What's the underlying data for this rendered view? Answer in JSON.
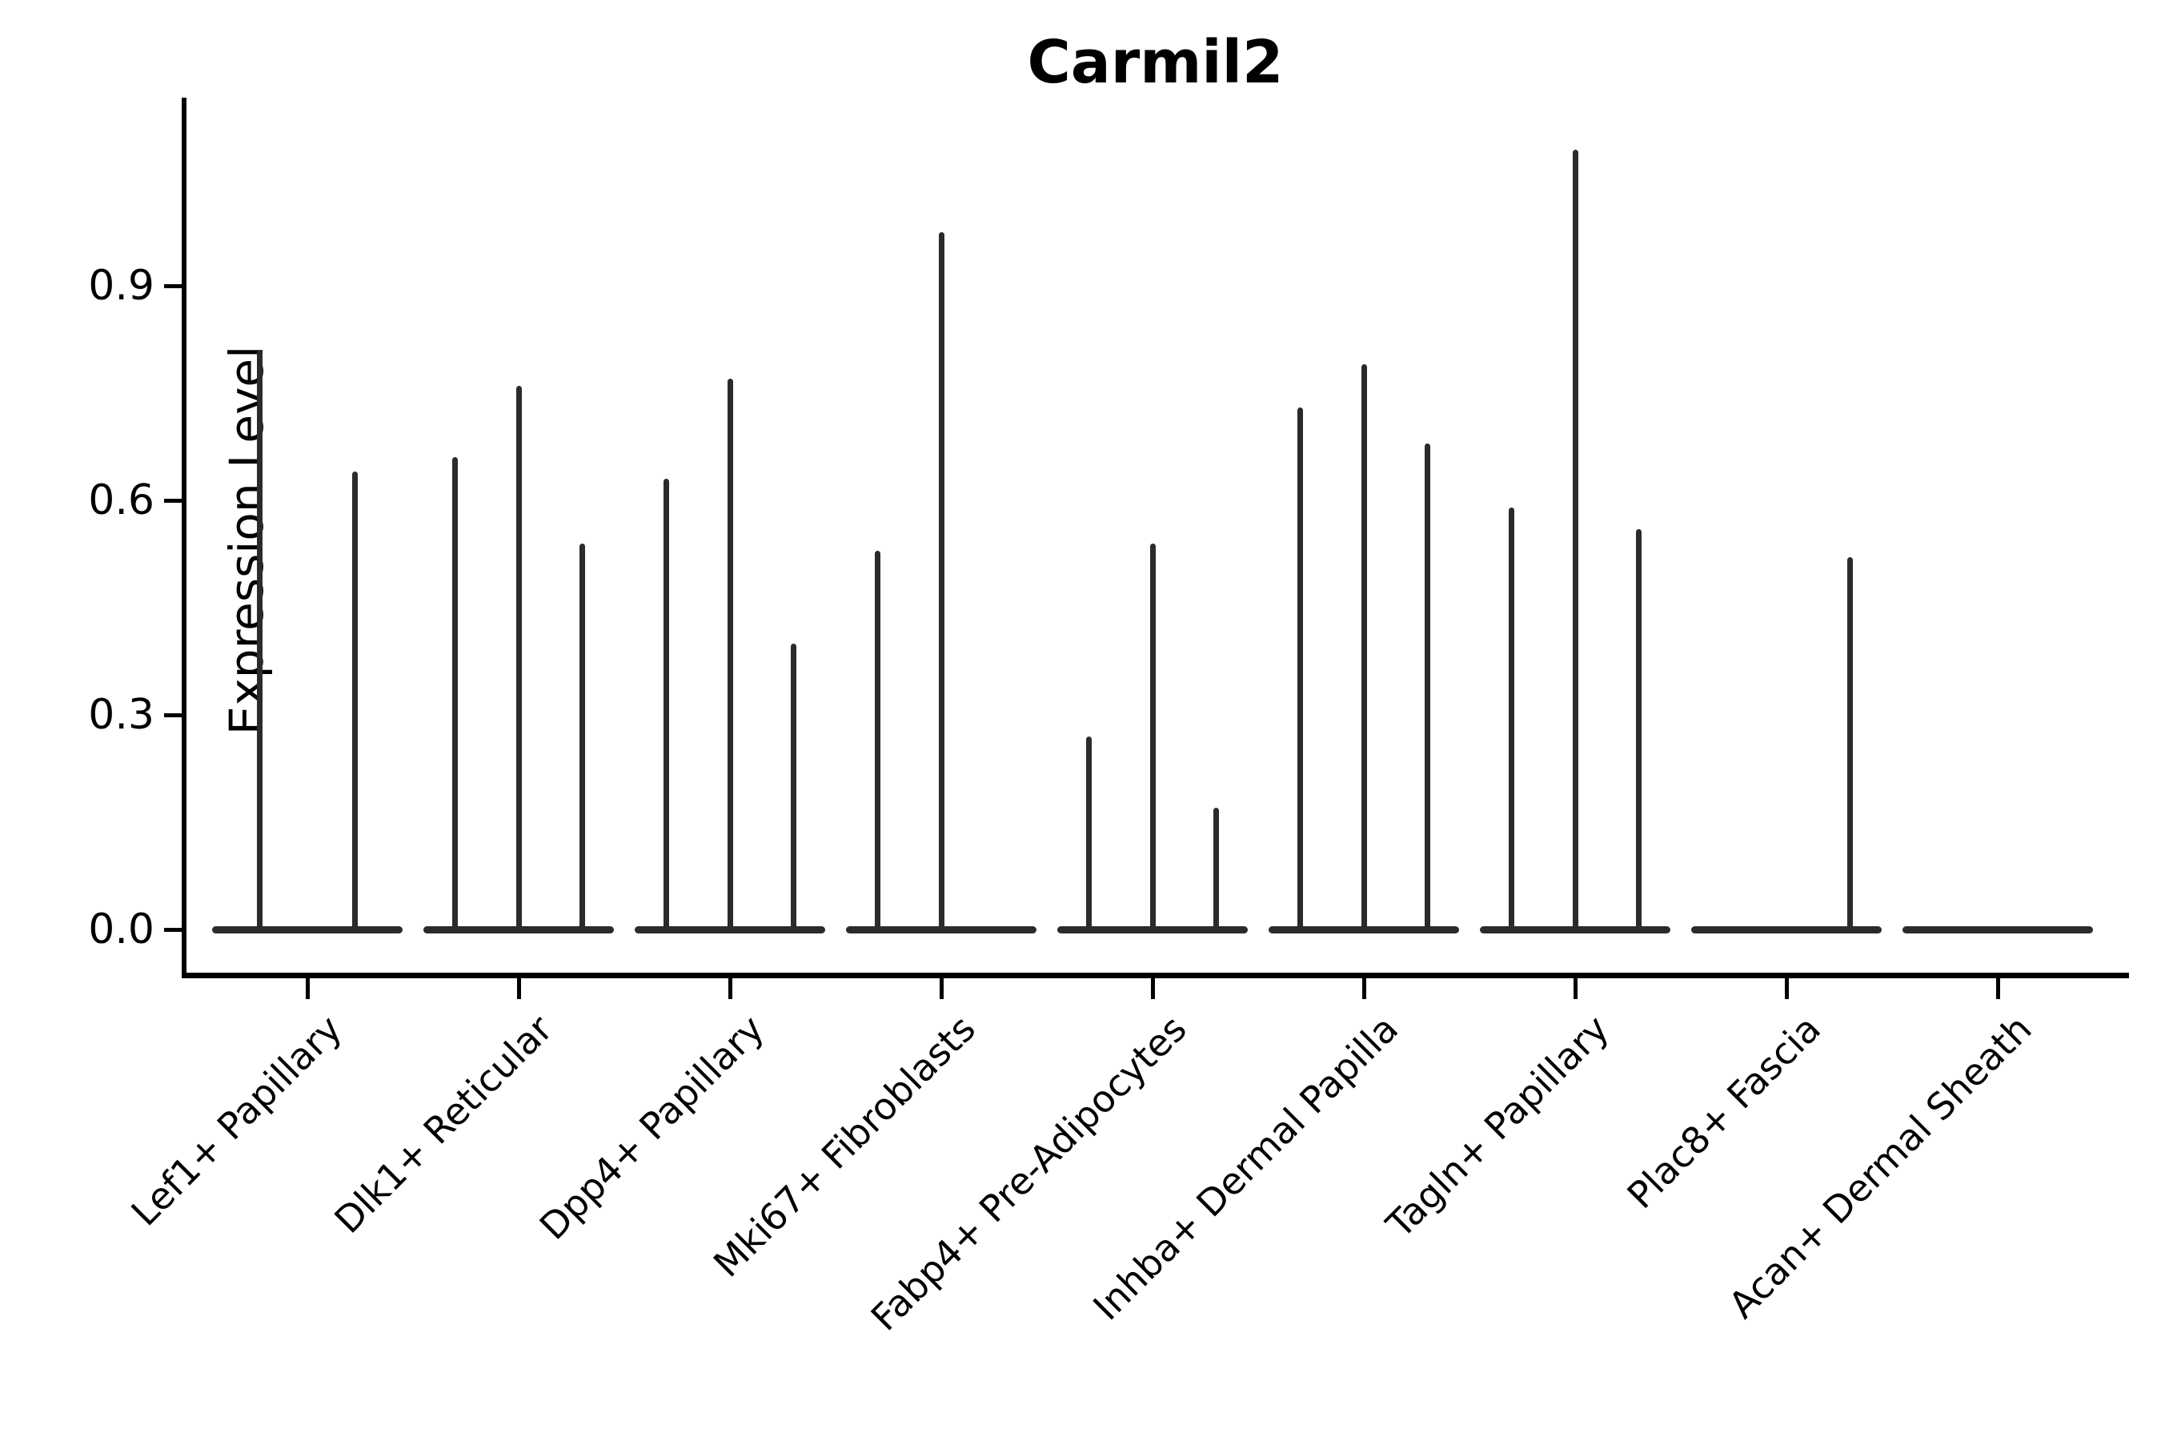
{
  "chart_data": {
    "type": "violin",
    "title": "Carmil2",
    "ylabel": "Expression Level",
    "xlabel": "",
    "grid": false,
    "legend": null,
    "line_color": "#2b2b2b",
    "axis_color": "#000000",
    "ylim": [
      -0.06,
      1.16
    ],
    "ytick_labels": [
      "0.0",
      "0.3",
      "0.6",
      "0.9"
    ],
    "ytick_values": [
      0.0,
      0.3,
      0.6,
      0.9
    ],
    "categories": [
      "Lef1+ Papillary",
      "Dlk1+ Reticular",
      "Dpp4+ Papillary",
      "Mki67+ Fibroblasts",
      "Fabp4+ Pre-Adipocytes",
      "Inhba+ Dermal Papilla",
      "Tagln+ Papillary",
      "Plac8+ Fascia",
      "Acan+ Dermal Sheath"
    ],
    "groups": [
      {
        "category": "Lef1+ Papillary",
        "slots": 2,
        "violins": [
          {
            "slot": 0,
            "max": 0.81
          },
          {
            "slot": 1,
            "max": 0.64
          }
        ]
      },
      {
        "category": "Dlk1+ Reticular",
        "slots": 3,
        "violins": [
          {
            "slot": 0,
            "max": 0.66
          },
          {
            "slot": 1,
            "max": 0.76
          },
          {
            "slot": 2,
            "max": 0.54
          }
        ]
      },
      {
        "category": "Dpp4+ Papillary",
        "slots": 3,
        "violins": [
          {
            "slot": 0,
            "max": 0.63
          },
          {
            "slot": 1,
            "max": 0.77
          },
          {
            "slot": 2,
            "max": 0.4
          }
        ]
      },
      {
        "category": "Mki67+ Fibroblasts",
        "slots": 3,
        "violins": [
          {
            "slot": 0,
            "max": 0.53
          },
          {
            "slot": 1,
            "max": 0.975
          }
        ]
      },
      {
        "category": "Fabp4+ Pre-Adipocytes",
        "slots": 3,
        "violins": [
          {
            "slot": 0,
            "max": 0.27
          },
          {
            "slot": 1,
            "max": 0.54
          },
          {
            "slot": 2,
            "max": 0.17
          }
        ]
      },
      {
        "category": "Inhba+ Dermal Papilla",
        "slots": 3,
        "violins": [
          {
            "slot": 0,
            "max": 0.73
          },
          {
            "slot": 1,
            "max": 0.79
          },
          {
            "slot": 2,
            "max": 0.68
          }
        ]
      },
      {
        "category": "Tagln+ Papillary",
        "slots": 3,
        "violins": [
          {
            "slot": 0,
            "max": 0.59
          },
          {
            "slot": 1,
            "max": 1.09
          },
          {
            "slot": 2,
            "max": 0.56
          }
        ]
      },
      {
        "category": "Plac8+ Fascia",
        "slots": 3,
        "violins": [
          {
            "slot": 2,
            "max": 0.52
          }
        ]
      },
      {
        "category": "Acan+ Dermal Sheath",
        "slots": 3,
        "violins": []
      }
    ]
  }
}
